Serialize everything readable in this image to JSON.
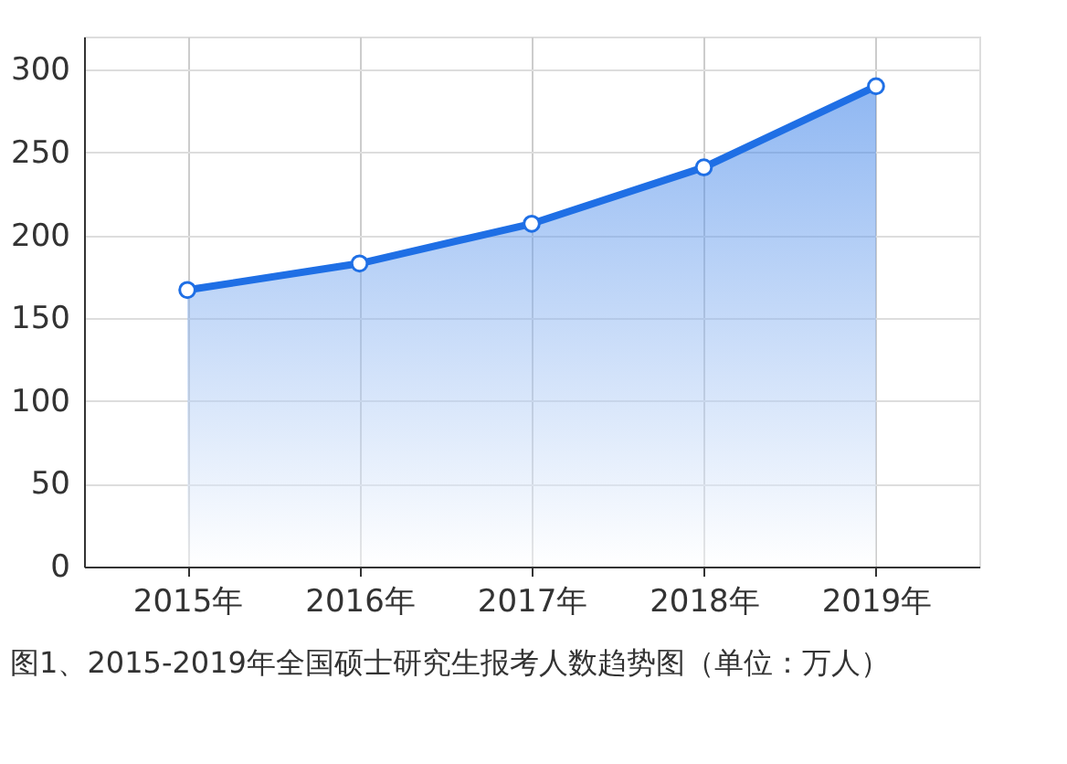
{
  "chart_data": {
    "type": "area",
    "title": "图1、2015-2019年全国硕士研究生报考人数趋势图（单位：万人）",
    "categories": [
      "2015年",
      "2016年",
      "2017年",
      "2018年",
      "2019年"
    ],
    "series": [
      {
        "color": "#1f6fe5",
        "values": [
          167,
          183,
          207,
          241,
          290
        ]
      }
    ],
    "ylim": [
      0,
      320
    ],
    "yticks": [
      0,
      50,
      100,
      150,
      200,
      250,
      300
    ],
    "grid": true,
    "marker": "circle",
    "line_style": "solid"
  }
}
